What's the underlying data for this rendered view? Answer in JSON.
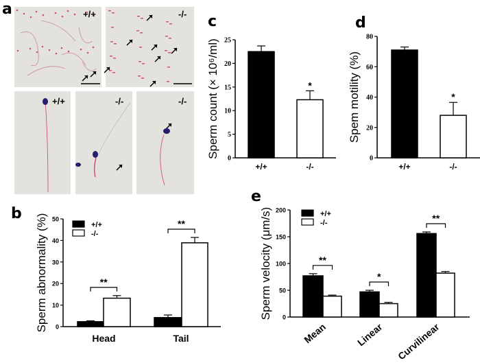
{
  "panel_a": {
    "letter": "a",
    "top_left_label": "+/+",
    "top_right_label": "-/-",
    "bottom_left_label": "+/+",
    "bottom_middle_label": "-/-",
    "bottom_right_label": "-/-",
    "colors": {
      "background": "#e4e2dd",
      "stain_pink": "#d0507a",
      "head_blue": "#2a1a70"
    }
  },
  "chart_data": [
    {
      "id": "b",
      "letter": "b",
      "type": "bar",
      "ylabel": "Sperm abnormality (%)",
      "categories": [
        "Head",
        "Tail"
      ],
      "ylim": [
        0,
        50
      ],
      "yticks": [
        "0",
        "10",
        "20",
        "30",
        "40",
        "50"
      ],
      "legend": {
        "placement": "top-left",
        "entries": [
          "+/+",
          "-/-"
        ]
      },
      "series": [
        {
          "name": "+/+",
          "color": "#000000",
          "values": [
            2.3,
            4.2
          ],
          "errors": [
            0.4,
            1.2
          ]
        },
        {
          "name": "-/-",
          "color": "#ffffff",
          "values": [
            13.2,
            38.9
          ],
          "errors": [
            1.2,
            2.5
          ]
        }
      ],
      "significance": [
        "**",
        "**"
      ]
    },
    {
      "id": "c",
      "letter": "c",
      "type": "bar",
      "ylabel": "Sperm count (× 10⁶/ml)",
      "categories": [
        "+/+",
        "-/-"
      ],
      "ylim": [
        0,
        25
      ],
      "yticks": [
        "0",
        "5",
        "10",
        "15",
        "20",
        "25"
      ],
      "series": [
        {
          "values": [
            22.5,
            12.3
          ],
          "errors": [
            1.2,
            1.9
          ],
          "colors": [
            "#000000",
            "#ffffff"
          ]
        }
      ],
      "significance": [
        "",
        "*"
      ]
    },
    {
      "id": "d",
      "letter": "d",
      "type": "bar",
      "ylabel": "Spem motility (%)",
      "categories": [
        "+/+",
        "-/-"
      ],
      "ylim": [
        0,
        80
      ],
      "yticks": [
        "0",
        "20",
        "40",
        "60",
        "80"
      ],
      "series": [
        {
          "values": [
            71,
            28
          ],
          "errors": [
            2,
            8.5
          ],
          "colors": [
            "#000000",
            "#ffffff"
          ]
        }
      ],
      "significance": [
        "",
        "*"
      ]
    },
    {
      "id": "e",
      "letter": "e",
      "type": "bar",
      "ylabel": "Sperm velocity (μm/s)",
      "categories": [
        "Mean",
        "Linear",
        "Curvilinear"
      ],
      "ylim": [
        0,
        200
      ],
      "yticks": [
        "0",
        "50",
        "100",
        "150",
        "200"
      ],
      "legend": {
        "placement": "top-left",
        "entries": [
          "+/+",
          "-/-"
        ]
      },
      "series": [
        {
          "name": "+/+",
          "color": "#000000",
          "values": [
            77,
            47,
            156
          ],
          "errors": [
            4,
            3,
            3
          ]
        },
        {
          "name": "-/-",
          "color": "#ffffff",
          "values": [
            39,
            25,
            82
          ],
          "errors": [
            2,
            2.5,
            3
          ]
        }
      ],
      "significance": [
        "**",
        "*",
        "**"
      ]
    }
  ]
}
